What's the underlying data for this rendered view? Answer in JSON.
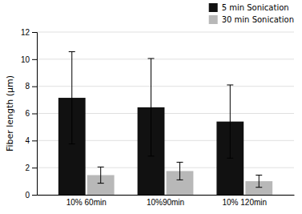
{
  "chart_data": {
    "type": "bar",
    "categories": [
      "10% 60min",
      "10%90min",
      "10% 120min"
    ],
    "series": [
      {
        "name": "5 min Sonication",
        "color": "#111111",
        "values": [
          7.15,
          6.45,
          5.4
        ],
        "errors": [
          3.4,
          3.6,
          2.7
        ]
      },
      {
        "name": "30 min Sonication",
        "color": "#b8b8b8",
        "values": [
          1.45,
          1.75,
          1.0
        ],
        "errors": [
          0.6,
          0.65,
          0.45
        ]
      }
    ],
    "ylabel": "Fiber length (μm)",
    "ylim": [
      0,
      12
    ],
    "yticks": [
      0,
      2,
      4,
      6,
      8,
      10,
      12
    ],
    "grid": true,
    "legend": "upper right"
  }
}
